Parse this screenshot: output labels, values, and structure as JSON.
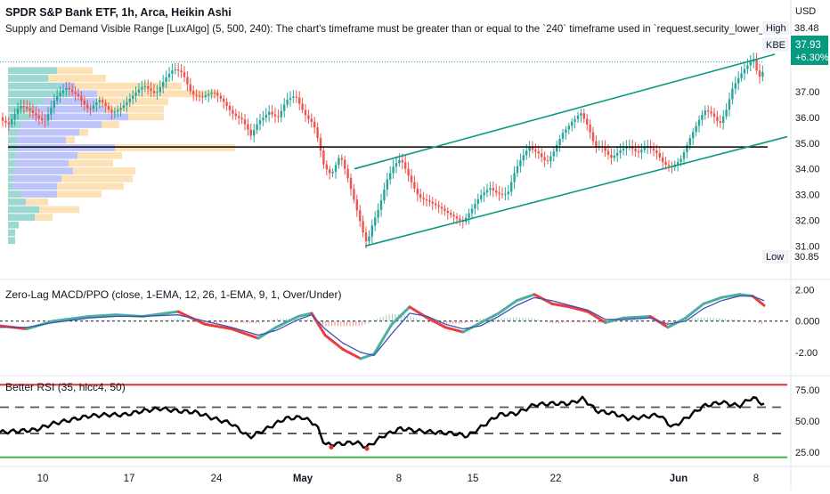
{
  "header": {
    "title": "SPDR S&P Bank ETF, 1h, Arca, Heikin Ashi",
    "indicator_line": "Supply and Demand Visible Range [LuxAlgo] (5, 500, 240): The chart's timeframe must be greater than or equal to the `240` timeframe used in `request.security_lower_tf()`."
  },
  "currency": "USD",
  "price_badge": {
    "symbol": "KBE",
    "price": "37.93",
    "change": "+6.30%"
  },
  "high_label": {
    "text": "High",
    "value": "38.48"
  },
  "low_label": {
    "text": "Low",
    "value": "30.85"
  },
  "colors": {
    "up": "#26a69a",
    "down": "#ef5350",
    "channel": "#089981",
    "hline": "#000000",
    "profile_green": "#26a69a",
    "profile_blue": "#5b6cf0",
    "profile_orange": "#f7c46c",
    "macd_green": "#4caf9e",
    "macd_red": "#ef3b3b",
    "macd_blue": "#3f51b5",
    "rsi_line": "#000000",
    "rsi_upper": "#e03030",
    "rsi_lower": "#4caf50"
  },
  "x_axis_labels": [
    "10",
    "17",
    "24",
    "May",
    "8",
    "15",
    "22",
    "Jun",
    "8"
  ],
  "chart_data": [
    {
      "type": "candlestick",
      "title": "SPDR S&P Bank ETF, 1h, Arca, Heikin Ashi",
      "y_axis": {
        "ticks": [
          "31.00",
          "32.00",
          "33.00",
          "34.00",
          "35.00",
          "36.00",
          "37.00"
        ],
        "range": [
          30.6,
          38.9
        ]
      },
      "x_labels": [
        "10",
        "17",
        "24",
        "May",
        "8",
        "15",
        "22",
        "Jun",
        "8"
      ],
      "close_path": [
        [
          0,
          36.0
        ],
        [
          10,
          35.8
        ],
        [
          22,
          36.4
        ],
        [
          35,
          36.2
        ],
        [
          50,
          35.9
        ],
        [
          62,
          36.7
        ],
        [
          75,
          37.1
        ],
        [
          88,
          36.9
        ],
        [
          100,
          36.3
        ],
        [
          112,
          36.6
        ],
        [
          125,
          36.2
        ],
        [
          138,
          36.5
        ],
        [
          150,
          36.8
        ],
        [
          162,
          37.2
        ],
        [
          175,
          37.0
        ],
        [
          185,
          37.5
        ],
        [
          195,
          37.8
        ],
        [
          205,
          37.7
        ],
        [
          215,
          37.0
        ],
        [
          228,
          36.8
        ],
        [
          240,
          36.9
        ],
        [
          252,
          36.6
        ],
        [
          262,
          36.2
        ],
        [
          272,
          35.9
        ],
        [
          282,
          35.2
        ],
        [
          290,
          35.8
        ],
        [
          302,
          36.3
        ],
        [
          312,
          36.0
        ],
        [
          322,
          36.6
        ],
        [
          332,
          36.8
        ],
        [
          342,
          36.2
        ],
        [
          352,
          35.8
        ],
        [
          358,
          35.0
        ],
        [
          364,
          34.0
        ],
        [
          372,
          33.7
        ],
        [
          382,
          34.6
        ],
        [
          390,
          33.8
        ],
        [
          396,
          33.0
        ],
        [
          402,
          32.2
        ],
        [
          408,
          31.4
        ],
        [
          412,
          31.0
        ],
        [
          418,
          31.8
        ],
        [
          426,
          32.6
        ],
        [
          434,
          33.6
        ],
        [
          442,
          34.1
        ],
        [
          450,
          34.3
        ],
        [
          460,
          33.6
        ],
        [
          470,
          33.0
        ],
        [
          480,
          32.8
        ],
        [
          490,
          32.5
        ],
        [
          500,
          32.3
        ],
        [
          510,
          32.2
        ],
        [
          520,
          32.0
        ],
        [
          530,
          32.4
        ],
        [
          540,
          32.9
        ],
        [
          550,
          33.3
        ],
        [
          560,
          33.1
        ],
        [
          570,
          33.0
        ],
        [
          578,
          33.8
        ],
        [
          586,
          34.4
        ],
        [
          594,
          34.9
        ],
        [
          604,
          34.7
        ],
        [
          614,
          34.2
        ],
        [
          622,
          34.6
        ],
        [
          632,
          35.4
        ],
        [
          642,
          35.9
        ],
        [
          652,
          36.2
        ],
        [
          660,
          35.6
        ],
        [
          668,
          34.8
        ],
        [
          676,
          34.9
        ],
        [
          686,
          34.5
        ],
        [
          696,
          34.7
        ],
        [
          706,
          34.8
        ],
        [
          716,
          34.6
        ],
        [
          726,
          35.0
        ],
        [
          736,
          34.7
        ],
        [
          746,
          34.1
        ],
        [
          754,
          34.0
        ],
        [
          764,
          34.4
        ],
        [
          774,
          35.2
        ],
        [
          784,
          35.8
        ],
        [
          792,
          36.2
        ],
        [
          800,
          36.1
        ],
        [
          808,
          35.8
        ],
        [
          816,
          36.4
        ],
        [
          822,
          37.1
        ],
        [
          830,
          37.5
        ],
        [
          838,
          37.9
        ],
        [
          846,
          38.3
        ],
        [
          852,
          37.6
        ],
        [
          858,
          37.93
        ]
      ],
      "channel_upper": [
        [
          9.2,
          34.0
        ],
        [
          11.2,
          38.3
        ]
      ],
      "channel_lower": [
        [
          9.2,
          31.0
        ],
        [
          11.2,
          34.9
        ]
      ],
      "horizontal_level": 34.85,
      "volume_profile": [
        {
          "price": 37.8,
          "green": 55,
          "blue": 0,
          "orange": 40
        },
        {
          "price": 37.5,
          "green": 45,
          "blue": 0,
          "orange": 65
        },
        {
          "price": 37.2,
          "green": 60,
          "blue": 15,
          "orange": 120
        },
        {
          "price": 36.9,
          "green": 70,
          "blue": 30,
          "orange": 135
        },
        {
          "price": 36.6,
          "green": 40,
          "blue": 60,
          "orange": 80
        },
        {
          "price": 36.3,
          "green": 30,
          "blue": 80,
          "orange": 65
        },
        {
          "price": 36.0,
          "green": 25,
          "blue": 110,
          "orange": 40
        },
        {
          "price": 35.7,
          "green": 15,
          "blue": 90,
          "orange": 20
        },
        {
          "price": 35.4,
          "green": 10,
          "blue": 70,
          "orange": 10
        },
        {
          "price": 35.1,
          "green": 10,
          "blue": 55,
          "orange": 10
        },
        {
          "price": 34.8,
          "green": 10,
          "blue": 110,
          "orange": 135
        },
        {
          "price": 34.5,
          "green": 8,
          "blue": 70,
          "orange": 50
        },
        {
          "price": 34.2,
          "green": 8,
          "blue": 60,
          "orange": 50
        },
        {
          "price": 33.9,
          "green": 8,
          "blue": 65,
          "orange": 70
        },
        {
          "price": 33.6,
          "green": 5,
          "blue": 55,
          "orange": 80
        },
        {
          "price": 33.3,
          "green": 5,
          "blue": 50,
          "orange": 75
        },
        {
          "price": 33.0,
          "green": 15,
          "blue": 40,
          "orange": 50
        },
        {
          "price": 32.7,
          "green": 20,
          "blue": 0,
          "orange": 25
        },
        {
          "price": 32.4,
          "green": 35,
          "blue": 0,
          "orange": 45
        },
        {
          "price": 32.1,
          "green": 30,
          "blue": 0,
          "orange": 20
        },
        {
          "price": 31.8,
          "green": 12,
          "blue": 0,
          "orange": 0
        },
        {
          "price": 31.5,
          "green": 8,
          "blue": 0,
          "orange": 0
        },
        {
          "price": 31.2,
          "green": 8,
          "blue": 0,
          "orange": 0
        }
      ]
    },
    {
      "type": "line",
      "title": "Zero-Lag MACD/PPO (close, 1-EMA, 12, 26, 1-EMA, 9, 1, Over/Under)",
      "y_axis": {
        "ticks": [
          "2.00",
          "0.000",
          "-2.00"
        ],
        "range": [
          -2.8,
          2.2
        ]
      },
      "series": [
        {
          "values": [
            [
              0,
              -0.3
            ],
            [
              30,
              -0.5
            ],
            [
              60,
              0.0
            ],
            [
              100,
              0.3
            ],
            [
              130,
              0.4
            ],
            [
              160,
              0.3
            ],
            [
              200,
              0.6
            ],
            [
              230,
              -0.2
            ],
            [
              260,
              -0.5
            ],
            [
              290,
              -1.1
            ],
            [
              310,
              -0.4
            ],
            [
              335,
              0.3
            ],
            [
              350,
              0.5
            ],
            [
              365,
              -0.9
            ],
            [
              385,
              -1.8
            ],
            [
              405,
              -2.4
            ],
            [
              420,
              -2.1
            ],
            [
              440,
              -0.2
            ],
            [
              460,
              0.9
            ],
            [
              480,
              0.2
            ],
            [
              500,
              -0.4
            ],
            [
              520,
              -0.7
            ],
            [
              540,
              -0.1
            ],
            [
              560,
              0.5
            ],
            [
              580,
              1.3
            ],
            [
              600,
              1.7
            ],
            [
              620,
              1.1
            ],
            [
              640,
              0.9
            ],
            [
              660,
              0.6
            ],
            [
              680,
              -0.1
            ],
            [
              700,
              0.2
            ],
            [
              730,
              0.3
            ],
            [
              750,
              -0.4
            ],
            [
              770,
              0.2
            ],
            [
              790,
              1.1
            ],
            [
              810,
              1.5
            ],
            [
              830,
              1.7
            ],
            [
              845,
              1.6
            ],
            [
              858,
              1.0
            ]
          ]
        },
        {
          "values": [
            [
              0,
              -0.4
            ],
            [
              30,
              -0.4
            ],
            [
              60,
              -0.1
            ],
            [
              100,
              0.2
            ],
            [
              130,
              0.3
            ],
            [
              160,
              0.3
            ],
            [
              200,
              0.4
            ],
            [
              230,
              0.0
            ],
            [
              260,
              -0.4
            ],
            [
              290,
              -0.9
            ],
            [
              310,
              -0.6
            ],
            [
              335,
              0.1
            ],
            [
              350,
              0.4
            ],
            [
              365,
              -0.5
            ],
            [
              385,
              -1.4
            ],
            [
              405,
              -2.0
            ],
            [
              420,
              -2.2
            ],
            [
              440,
              -0.8
            ],
            [
              460,
              0.5
            ],
            [
              480,
              0.3
            ],
            [
              500,
              -0.2
            ],
            [
              520,
              -0.5
            ],
            [
              540,
              -0.3
            ],
            [
              560,
              0.3
            ],
            [
              580,
              1.0
            ],
            [
              600,
              1.5
            ],
            [
              620,
              1.3
            ],
            [
              640,
              1.0
            ],
            [
              660,
              0.7
            ],
            [
              680,
              0.1
            ],
            [
              700,
              0.1
            ],
            [
              730,
              0.2
            ],
            [
              750,
              -0.2
            ],
            [
              770,
              0.0
            ],
            [
              790,
              0.8
            ],
            [
              810,
              1.3
            ],
            [
              830,
              1.6
            ],
            [
              845,
              1.6
            ],
            [
              858,
              1.3
            ]
          ]
        }
      ]
    },
    {
      "type": "line",
      "title": "Better RSI (35, hlcc4, 50)",
      "y_axis": {
        "ticks": [
          "75.00",
          "50.00",
          "25.00"
        ],
        "range": [
          18,
          82
        ]
      },
      "levels": {
        "upper": 79,
        "mid_high": 61,
        "mid_low": 40,
        "lower": 21
      },
      "series": [
        {
          "values": [
            [
              0,
              41
            ],
            [
              20,
              42
            ],
            [
              40,
              43
            ],
            [
              60,
              48
            ],
            [
              80,
              51
            ],
            [
              100,
              54
            ],
            [
              120,
              55
            ],
            [
              140,
              55
            ],
            [
              160,
              58
            ],
            [
              180,
              60
            ],
            [
              200,
              58
            ],
            [
              220,
              57
            ],
            [
              240,
              52
            ],
            [
              260,
              48
            ],
            [
              280,
              37
            ],
            [
              300,
              44
            ],
            [
              320,
              52
            ],
            [
              340,
              53
            ],
            [
              355,
              47
            ],
            [
              365,
              31
            ],
            [
              385,
              32
            ],
            [
              400,
              33
            ],
            [
              412,
              29
            ],
            [
              430,
              38
            ],
            [
              450,
              44
            ],
            [
              470,
              42
            ],
            [
              490,
              41
            ],
            [
              510,
              40
            ],
            [
              525,
              38
            ],
            [
              540,
              45
            ],
            [
              560,
              55
            ],
            [
              580,
              56
            ],
            [
              600,
              63
            ],
            [
              620,
              64
            ],
            [
              640,
              64
            ],
            [
              655,
              68
            ],
            [
              670,
              58
            ],
            [
              690,
              56
            ],
            [
              705,
              52
            ],
            [
              720,
              53
            ],
            [
              740,
              55
            ],
            [
              755,
              45
            ],
            [
              770,
              52
            ],
            [
              790,
              62
            ],
            [
              810,
              65
            ],
            [
              830,
              62
            ],
            [
              845,
              69
            ],
            [
              858,
              63
            ]
          ]
        }
      ]
    }
  ]
}
